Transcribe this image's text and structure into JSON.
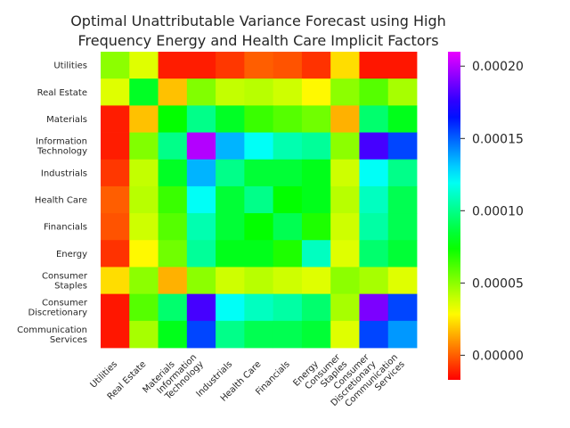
{
  "chart_data": {
    "type": "heatmap",
    "title_lines": [
      "Optimal Unattributable Variance Forecast using High",
      "Frequency Energy and Health Care Implicit Factors"
    ],
    "row_labels": [
      [
        "Utilities"
      ],
      [
        "Real Estate"
      ],
      [
        "Materials"
      ],
      [
        "Information",
        "Technology"
      ],
      [
        "Industrials"
      ],
      [
        "Health Care"
      ],
      [
        "Financials"
      ],
      [
        "Energy"
      ],
      [
        "Consumer",
        "Staples"
      ],
      [
        "Consumer",
        "Discretionary"
      ],
      [
        "Communication",
        "Services"
      ]
    ],
    "col_labels": [
      [
        "Utilities"
      ],
      [
        "Real Estate"
      ],
      [
        "Materials"
      ],
      [
        "Information",
        "Technology"
      ],
      [
        "Industrials"
      ],
      [
        "Health Care"
      ],
      [
        "Financials"
      ],
      [
        "Energy"
      ],
      [
        "Consumer",
        "Staples"
      ],
      [
        "Consumer",
        "Discretionary"
      ],
      [
        "Communication",
        "Services"
      ]
    ],
    "values": [
      [
        5e-05,
        3.5e-05,
        -1.2e-05,
        -1.2e-05,
        -7e-06,
        0.0,
        -2e-06,
        -8e-06,
        2.3e-05,
        -1.3e-05,
        -1.3e-05
      ],
      [
        3.5e-05,
        8.2e-05,
        1.8e-05,
        5.2e-05,
        4e-05,
        4.2e-05,
        3.8e-05,
        2.8e-05,
        5e-05,
        6e-05,
        4.5e-05
      ],
      [
        -1.2e-05,
        1.8e-05,
        7.5e-05,
        0.0001,
        8.2e-05,
        6.5e-05,
        6e-05,
        5.5e-05,
        1.5e-05,
        9.5e-05,
        8e-05
      ],
      [
        -1.2e-05,
        5.2e-05,
        0.0001,
        0.0002,
        0.000135,
        0.00012,
        0.000107,
        0.000103,
        5e-05,
        0.00018,
        0.000155
      ],
      [
        -7e-06,
        4e-05,
        8.2e-05,
        0.000135,
        0.0001,
        8.5e-05,
        8.5e-05,
        8e-05,
        3.8e-05,
        0.00012,
        0.0001
      ],
      [
        0.0,
        4.2e-05,
        6.5e-05,
        0.00012,
        8.5e-05,
        0.0001,
        7.5e-05,
        8e-05,
        4.2e-05,
        0.00011,
        9e-05
      ],
      [
        -2e-06,
        3.8e-05,
        6e-05,
        0.000107,
        8.5e-05,
        7.5e-05,
        9e-05,
        7e-05,
        3.8e-05,
        0.000105,
        9e-05
      ],
      [
        -8e-06,
        2.8e-05,
        5.5e-05,
        0.000103,
        8e-05,
        8e-05,
        7e-05,
        0.00011,
        3.5e-05,
        9.5e-05,
        8.5e-05
      ],
      [
        2.3e-05,
        5e-05,
        1.5e-05,
        5e-05,
        3.8e-05,
        4.2e-05,
        3.8e-05,
        3.5e-05,
        5e-05,
        4.5e-05,
        3.5e-05
      ],
      [
        -1.3e-05,
        6e-05,
        9.5e-05,
        0.00018,
        0.00012,
        0.00011,
        0.000105,
        9.5e-05,
        4.5e-05,
        0.00019,
        0.000155
      ],
      [
        -1.3e-05,
        4.5e-05,
        8e-05,
        0.000155,
        0.0001,
        9e-05,
        9e-05,
        8.5e-05,
        3.5e-05,
        0.000155,
        0.00014
      ]
    ],
    "colorbar": {
      "vmin": -1.7e-05,
      "vmax": 0.00021,
      "ticks": [
        0.0,
        5e-05,
        0.0001,
        0.00015,
        0.0002
      ],
      "tick_labels": [
        "0.00000",
        "0.00005",
        "0.00010",
        "0.00015",
        "0.00020"
      ],
      "colormap": "gist_rainbow_r (red → yellow → green → cyan → blue → magenta)"
    },
    "colors": {
      "text": "#262626",
      "tick": "#262626",
      "background": "#ffffff"
    }
  }
}
